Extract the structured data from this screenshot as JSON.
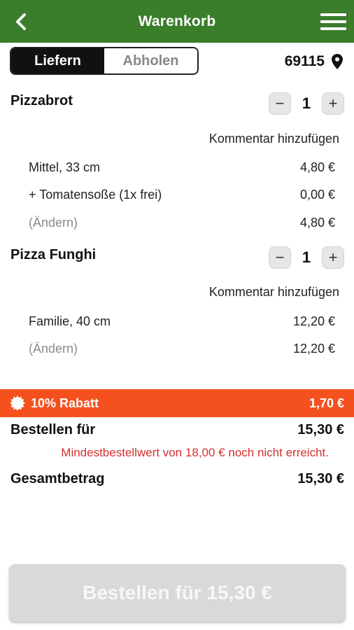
{
  "header": {
    "title": "Warenkorb"
  },
  "delivery_toggle": {
    "deliver_label": "Liefern",
    "pickup_label": "Abholen",
    "selected": "Liefern"
  },
  "location": {
    "zip": "69115"
  },
  "items": [
    {
      "name": "Pizzabrot",
      "quantity": "1",
      "comment_label": "Kommentar hinzufügen",
      "lines": [
        {
          "label": "Mittel, 33 cm",
          "price": "4,80 €"
        },
        {
          "label": "+ Tomatensoße (1x frei)",
          "price": "0,00 €"
        },
        {
          "label": "(Ändern)",
          "price": "4,80 €"
        }
      ]
    },
    {
      "name": "Pizza Funghi",
      "quantity": "1",
      "comment_label": "Kommentar hinzufügen",
      "lines": [
        {
          "label": "Familie, 40 cm",
          "price": "12,20 €"
        },
        {
          "label": "(Ändern)",
          "price": "12,20 €"
        }
      ]
    }
  ],
  "discount": {
    "label": "10% Rabatt",
    "amount": "1,70 €"
  },
  "order_for": {
    "label": "Bestellen für",
    "amount": "15,30 €"
  },
  "minimum_warning": "Mindestbestellwert von 18,00 € noch nicht erreicht.",
  "total": {
    "label": "Gesamtbetrag",
    "amount": "15,30 €"
  },
  "order_button": {
    "label": "Bestellen für 15,30 €"
  },
  "colors": {
    "header": "#3a7d2b",
    "discount": "#f4511e",
    "warning": "#d32f2f",
    "button_disabled": "#d9d9d9"
  }
}
